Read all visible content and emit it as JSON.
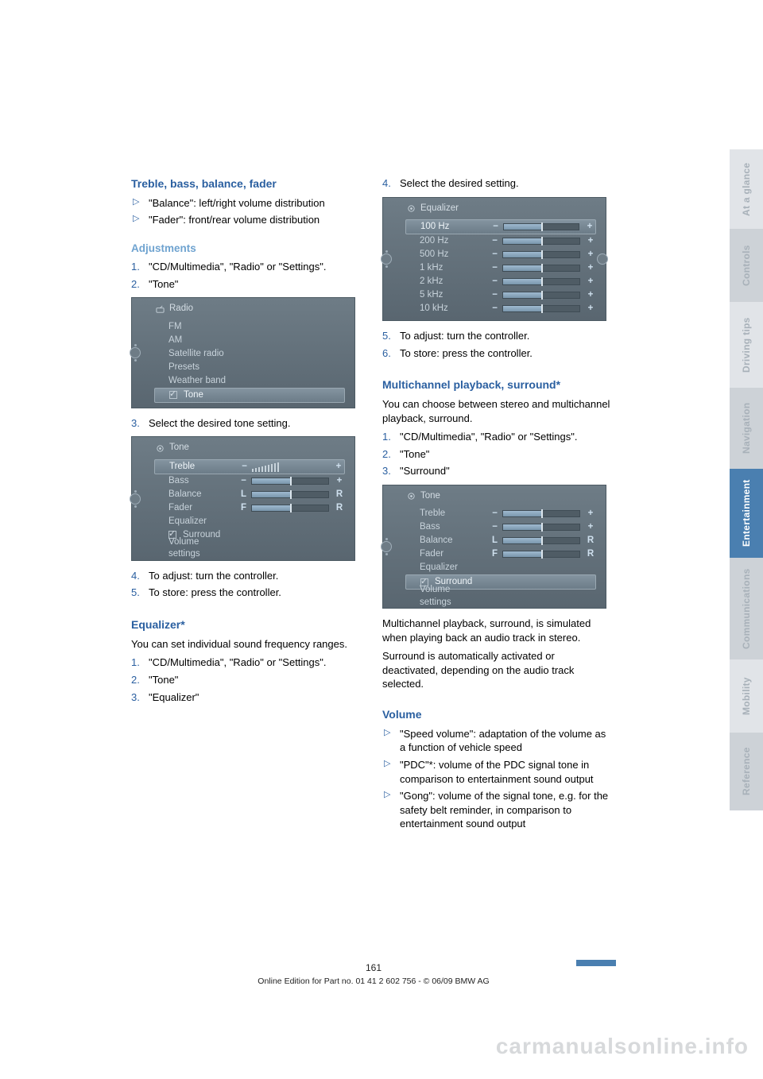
{
  "side_tabs": {
    "glance": "At a glance",
    "controls": "Controls",
    "driving": "Driving tips",
    "navigation": "Navigation",
    "entertainment": "Entertainment",
    "communications": "Communications",
    "mobility": "Mobility",
    "reference": "Reference"
  },
  "left": {
    "h_treble": "Treble, bass, balance, fader",
    "bullets_treble": {
      "b1": "\"Balance\": left/right volume distribution",
      "b2": "\"Fader\": front/rear volume distribution"
    },
    "h_adjust": "Adjustments",
    "adjust_steps": {
      "s1": "\"CD/Multimedia\", \"Radio\" or \"Settings\".",
      "s2": "\"Tone\""
    },
    "shot_radio": {
      "header": "Radio",
      "items": [
        "FM",
        "AM",
        "Satellite radio",
        "Presets",
        "Weather band",
        "Tone"
      ],
      "selected_index": 5
    },
    "step3": "Select the desired tone setting.",
    "shot_tone": {
      "header": "Tone",
      "rows": [
        {
          "label": "Treble",
          "type": "tickbars",
          "cap_l": "−",
          "cap_r": "+",
          "selected": true
        },
        {
          "label": "Bass",
          "type": "bar",
          "cap_l": "−",
          "cap_r": "+",
          "fill": 0.5,
          "tick": 0.5
        },
        {
          "label": "Balance",
          "type": "bar",
          "cap_l": "L",
          "cap_r": "R",
          "fill": 0.5,
          "tick": 0.5
        },
        {
          "label": "Fader",
          "type": "bar",
          "cap_l": "F",
          "cap_r": "R",
          "fill": 0.5,
          "tick": 0.5
        },
        {
          "label": "Equalizer",
          "type": "plain"
        },
        {
          "label": "Surround",
          "type": "check",
          "checked": true
        },
        {
          "label": "Volume settings",
          "type": "plain"
        }
      ]
    },
    "step4": "To adjust: turn the controller.",
    "step5": "To store: press the controller.",
    "h_eq": "Equalizer*",
    "eq_intro": "You can set individual sound frequency ranges.",
    "eq_steps": {
      "s1": "\"CD/Multimedia\", \"Radio\" or \"Settings\".",
      "s2": "\"Tone\"",
      "s3": "\"Equalizer\""
    }
  },
  "right": {
    "step4": "Select the desired setting.",
    "shot_eq": {
      "header": "Equalizer",
      "rows": [
        {
          "label": "100 Hz",
          "fill": 0.5,
          "tick": 0.5,
          "selected": true
        },
        {
          "label": "200 Hz",
          "fill": 0.5,
          "tick": 0.5
        },
        {
          "label": "500 Hz",
          "fill": 0.5,
          "tick": 0.5
        },
        {
          "label": "1 kHz",
          "fill": 0.5,
          "tick": 0.5
        },
        {
          "label": "2 kHz",
          "fill": 0.5,
          "tick": 0.5
        },
        {
          "label": "5 kHz",
          "fill": 0.5,
          "tick": 0.5
        },
        {
          "label": "10 kHz",
          "fill": 0.5,
          "tick": 0.5
        }
      ],
      "cap_l": "−",
      "cap_r": "+"
    },
    "step5": "To adjust: turn the controller.",
    "step6": "To store: press the controller.",
    "h_multi": "Multichannel playback, surround*",
    "multi_intro": "You can choose between stereo and multichannel playback, surround.",
    "multi_steps": {
      "s1": "\"CD/Multimedia\", \"Radio\" or \"Settings\".",
      "s2": "\"Tone\"",
      "s3": "\"Surround\""
    },
    "shot_tone2": {
      "header": "Tone",
      "rows": [
        {
          "label": "Treble",
          "type": "bar",
          "cap_l": "−",
          "cap_r": "+",
          "fill": 0.5,
          "tick": 0.5
        },
        {
          "label": "Bass",
          "type": "bar",
          "cap_l": "−",
          "cap_r": "+",
          "fill": 0.5,
          "tick": 0.5
        },
        {
          "label": "Balance",
          "type": "bar",
          "cap_l": "L",
          "cap_r": "R",
          "fill": 0.5,
          "tick": 0.5
        },
        {
          "label": "Fader",
          "type": "bar",
          "cap_l": "F",
          "cap_r": "R",
          "fill": 0.5,
          "tick": 0.5
        },
        {
          "label": "Equalizer",
          "type": "plain"
        },
        {
          "label": "Surround",
          "type": "check",
          "checked": true,
          "selected": true
        },
        {
          "label": "Volume settings",
          "type": "plain"
        }
      ]
    },
    "multi_p1": "Multichannel playback, surround, is simulated when playing back an audio track in stereo.",
    "multi_p2": "Surround is automatically activated or deactivated, depending on the audio track selected.",
    "h_vol": "Volume",
    "vol_bullets": {
      "b1": "\"Speed volume\": adaptation of the volume as a function of vehicle speed",
      "b2": "\"PDC\"*: volume of the PDC signal tone in comparison to entertainment sound output",
      "b3": "\"Gong\": volume of the signal tone, e.g. for the safety belt reminder, in comparison to entertainment sound output"
    }
  },
  "footer": {
    "page_number": "161",
    "edition": "Online Edition for Part no. 01 41 2 602 756 - © 06/09 BMW AG"
  },
  "watermark": "carmanualsonline.info",
  "colors": {
    "link_blue": "#2a5fa0",
    "light_blue": "#6fa3d0",
    "tab_active_bg": "#4a7fb0",
    "tab_bg1": "#e1e4e8",
    "tab_bg2": "#cdd2d7",
    "idrive_bg_top": "#6e7c86",
    "idrive_bg_bot": "#596670",
    "idrive_text": "#c8d3db",
    "slider_bg": "#4f5c65",
    "slider_fill_top": "#9fbad0",
    "slider_fill_bot": "#7a97ad"
  }
}
